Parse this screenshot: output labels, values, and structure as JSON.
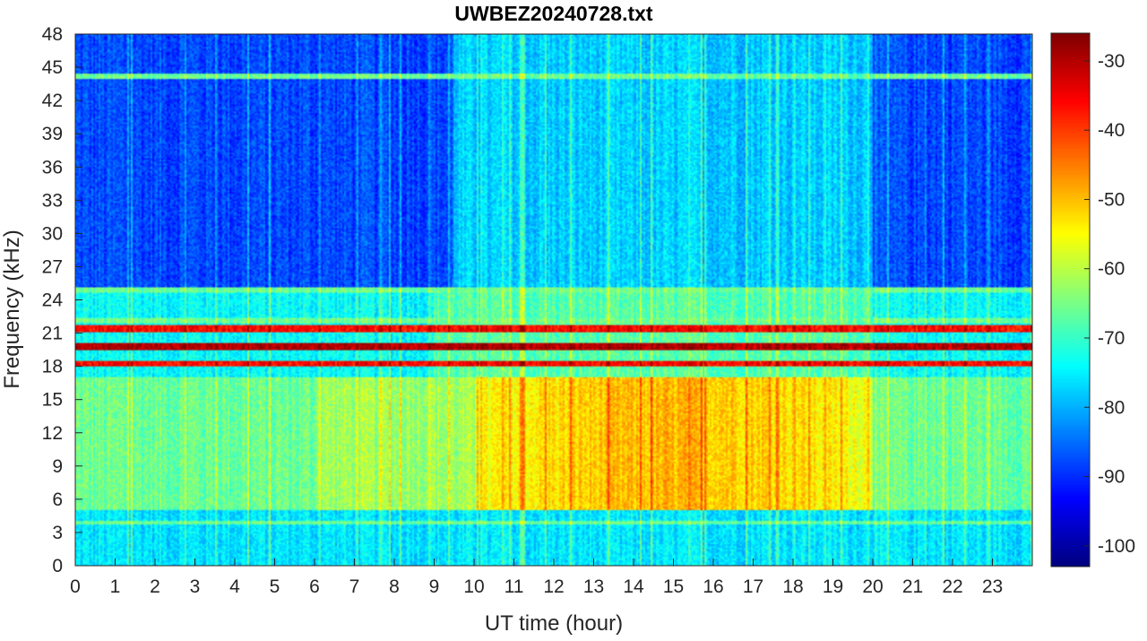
{
  "chart_data": {
    "type": "heatmap",
    "title": "UWBEZ20240728.txt",
    "xlabel": "UT time (hour)",
    "ylabel": "Frequency (kHz)",
    "xlim": [
      0,
      24
    ],
    "ylim": [
      0,
      48
    ],
    "x_ticks": [
      0,
      1,
      2,
      3,
      4,
      5,
      6,
      7,
      8,
      9,
      10,
      11,
      12,
      13,
      14,
      15,
      16,
      17,
      18,
      19,
      20,
      21,
      22,
      23
    ],
    "y_ticks": [
      0,
      3,
      6,
      9,
      12,
      15,
      18,
      21,
      24,
      27,
      30,
      33,
      36,
      39,
      42,
      45,
      48
    ],
    "colormap": "jet",
    "clim": [
      -103,
      -26
    ],
    "colorbar_ticks": [
      -30,
      -40,
      -50,
      -60,
      -70,
      -80,
      -90,
      -100
    ],
    "features": {
      "strong_lines_khz": [
        19.8,
        21.4,
        18.2
      ],
      "moderate_lines_khz": [
        24.9,
        22.1,
        44.2,
        16.0,
        7.8,
        3.9
      ],
      "high_activity_band": {
        "freq_khz": [
          5,
          17
        ],
        "hour": [
          10,
          20
        ],
        "peak_db": -48
      },
      "quiet_upper_band": {
        "freq_khz": [
          25,
          48
        ],
        "level_db": -90
      }
    },
    "colors": {
      "axis": "#262626",
      "title": "#000000",
      "grid_line": "none"
    }
  }
}
